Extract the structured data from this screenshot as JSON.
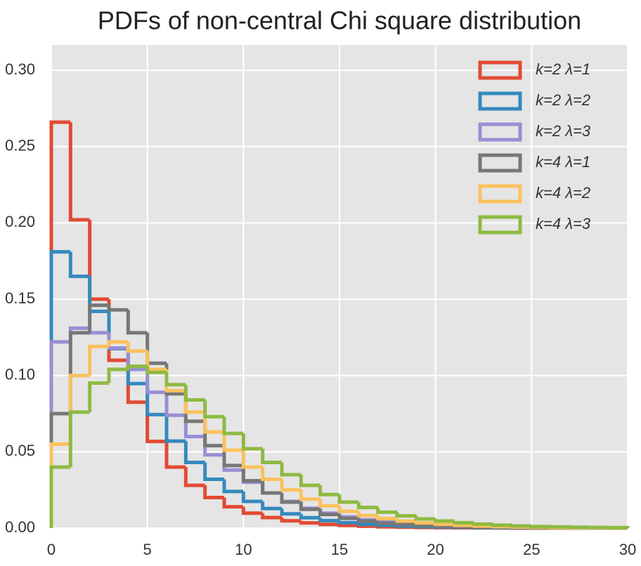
{
  "chart_data": {
    "type": "histogram-step",
    "title": "PDFs of non-central Chi square distribution",
    "bins": [
      0,
      1,
      2,
      3,
      4,
      5,
      6,
      7,
      8,
      9,
      10,
      11,
      12,
      13,
      14,
      15,
      16,
      17,
      18,
      19,
      20,
      21,
      22,
      23,
      24,
      25,
      26,
      27,
      28,
      29,
      30
    ],
    "series": [
      {
        "name": "k=2 λ=1",
        "color": "#E24A33",
        "values": [
          0.266,
          0.202,
          0.15,
          0.11,
          0.0825,
          0.0568,
          0.04,
          0.028,
          0.02,
          0.014,
          0.0098,
          0.0069,
          0.0048,
          0.0034,
          0.0024,
          0.0017,
          0.0012,
          0.0008,
          0.0006,
          0.0004,
          0.0003,
          0.0002,
          0.0001,
          0.0001,
          0,
          0,
          0,
          0,
          0,
          0
        ]
      },
      {
        "name": "k=2 λ=2",
        "color": "#348ABD",
        "values": [
          0.181,
          0.165,
          0.142,
          0.1176,
          0.0947,
          0.0744,
          0.057,
          0.043,
          0.032,
          0.024,
          0.0175,
          0.0128,
          0.0093,
          0.0068,
          0.0049,
          0.0035,
          0.0025,
          0.0018,
          0.0013,
          0.0009,
          0.0007,
          0.0005,
          0.0003,
          0.0002,
          0.0002,
          0.0001,
          0.0001,
          0,
          0,
          0
        ]
      },
      {
        "name": "k=2 λ=3",
        "color": "#988ED5",
        "values": [
          0.122,
          0.131,
          0.128,
          0.118,
          0.104,
          0.089,
          0.074,
          0.06,
          0.048,
          0.038,
          0.03,
          0.023,
          0.0175,
          0.013,
          0.0098,
          0.0073,
          0.0054,
          0.004,
          0.0029,
          0.0021,
          0.0015,
          0.0011,
          0.0008,
          0.0006,
          0.0004,
          0.0003,
          0.0002,
          0.0002,
          0.0001,
          0.0001
        ]
      },
      {
        "name": "k=4 λ=1",
        "color": "#777777",
        "values": [
          0.075,
          0.128,
          0.146,
          0.143,
          0.128,
          0.108,
          0.088,
          0.07,
          0.054,
          0.041,
          0.031,
          0.023,
          0.017,
          0.0123,
          0.0089,
          0.0064,
          0.0046,
          0.0032,
          0.0023,
          0.0016,
          0.0011,
          0.0008,
          0.0005,
          0.0004,
          0.0003,
          0.0002,
          0.0001,
          0.0001,
          0.0001,
          0
        ]
      },
      {
        "name": "k=4 λ=2",
        "color": "#FBC15E",
        "values": [
          0.055,
          0.1,
          0.119,
          0.122,
          0.116,
          0.104,
          0.09,
          0.076,
          0.063,
          0.051,
          0.04,
          0.032,
          0.025,
          0.019,
          0.0146,
          0.011,
          0.0083,
          0.0062,
          0.0046,
          0.0034,
          0.0025,
          0.0018,
          0.0013,
          0.0009,
          0.0007,
          0.0005,
          0.0003,
          0.0002,
          0.0002,
          0.0001
        ]
      },
      {
        "name": "k=4 λ=3",
        "color": "#8EBA42",
        "values": [
          0.04,
          0.076,
          0.095,
          0.104,
          0.106,
          0.102,
          0.094,
          0.084,
          0.073,
          0.062,
          0.052,
          0.043,
          0.035,
          0.028,
          0.022,
          0.017,
          0.0135,
          0.0104,
          0.008,
          0.006,
          0.0046,
          0.0035,
          0.0026,
          0.0019,
          0.0014,
          0.001,
          0.0008,
          0.0006,
          0.0004,
          0.0003
        ]
      }
    ],
    "xlim": [
      0,
      30
    ],
    "xticks": [
      0,
      5,
      10,
      15,
      20,
      25,
      30
    ],
    "ylim": [
      0,
      0.3166
    ],
    "yticks": [
      {
        "value": 0,
        "label": "0.00"
      },
      {
        "value": 0.05,
        "label": "0.05"
      },
      {
        "value": 0.1,
        "label": "0.10"
      },
      {
        "value": 0.15,
        "label": "0.15"
      },
      {
        "value": 0.2,
        "label": "0.20"
      },
      {
        "value": 0.25,
        "label": "0.25"
      },
      {
        "value": 0.3,
        "label": "0.30"
      }
    ],
    "grid": true,
    "legend": "upper right"
  }
}
